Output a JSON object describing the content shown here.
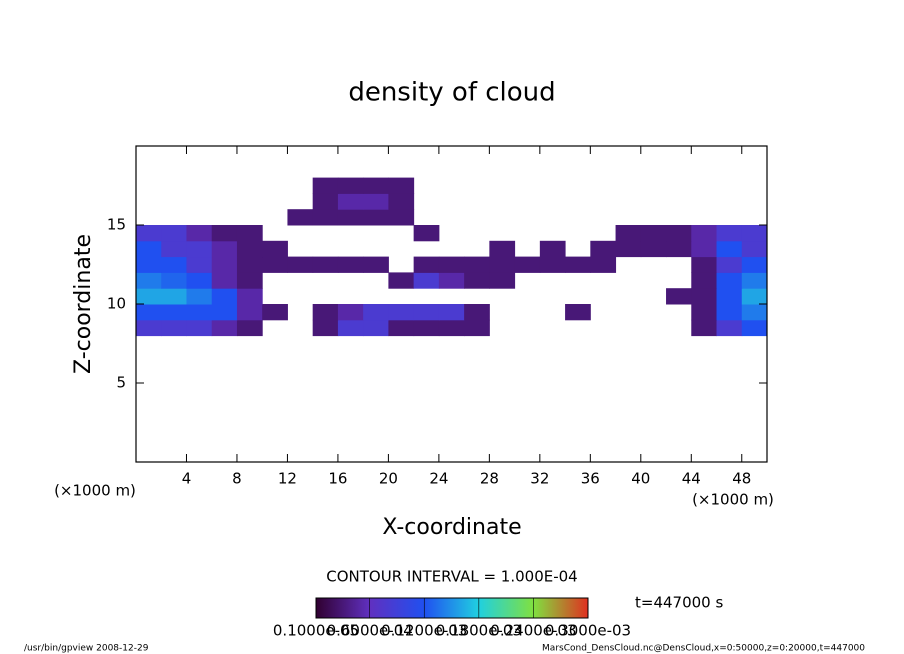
{
  "chart_data": {
    "type": "contour",
    "title": "density of cloud",
    "x_label": "X-coordinate",
    "y_label": "Z-coordinate",
    "x_unit_left": "(×1000 m)",
    "x_unit_right": "(×1000 m)",
    "contour_interval": "CONTOUR INTERVAL = 1.000E-04",
    "time_label": "t=447000 s",
    "footer_left": "/usr/bin/gpview  2008-12-29",
    "footer_right": "MarsCond_DensCloud.nc@DensCloud,x=0:50000,z=0:20000,t=447000",
    "xlim": [
      0,
      50
    ],
    "ylim": [
      0,
      20
    ],
    "xticks": [
      4,
      8,
      12,
      16,
      20,
      24,
      28,
      32,
      36,
      40,
      44,
      48
    ],
    "yticks": [
      5,
      10,
      15
    ],
    "x": [
      1,
      3,
      5,
      7,
      9,
      11,
      13,
      15,
      17,
      19,
      21,
      23,
      25,
      27,
      29,
      31,
      33,
      35,
      37,
      39,
      41,
      43,
      45,
      47,
      49
    ],
    "y": [
      8.5,
      9.5,
      10.5,
      11.5,
      12.5,
      13.5,
      14.5,
      15.5,
      16.5,
      17.5
    ],
    "z": [
      [
        8e-05,
        8e-05,
        8e-05,
        5e-05,
        3e-05,
        0,
        0,
        3e-05,
        8e-05,
        8e-05,
        3e-05,
        3e-05,
        3e-05,
        3e-05,
        0,
        0,
        0,
        0,
        0,
        0,
        0,
        0,
        3e-05,
        8e-05,
        0.00012
      ],
      [
        0.00012,
        0.00012,
        0.00012,
        0.00012,
        5e-05,
        3e-05,
        0,
        3e-05,
        5e-05,
        8e-05,
        8e-05,
        8e-05,
        8e-05,
        3e-05,
        0,
        0,
        0,
        3e-05,
        0,
        0,
        0,
        0,
        3e-05,
        0.00012,
        0.00014
      ],
      [
        0.00016,
        0.00016,
        0.00014,
        0.00012,
        5e-05,
        0,
        0,
        0,
        0,
        0,
        0,
        0,
        0,
        0,
        0,
        0,
        0,
        0,
        0,
        0,
        0,
        3e-05,
        3e-05,
        0.00012,
        0.00016
      ],
      [
        0.00014,
        0.00013,
        0.00012,
        5e-05,
        3e-05,
        0,
        0,
        0,
        0,
        0,
        3e-05,
        8e-05,
        5e-05,
        3e-05,
        3e-05,
        0,
        0,
        0,
        0,
        0,
        0,
        0,
        3e-05,
        0.00012,
        0.00014
      ],
      [
        0.00012,
        0.00012,
        8e-05,
        5e-05,
        3e-05,
        3e-05,
        3e-05,
        3e-05,
        3e-05,
        3e-05,
        0,
        3e-05,
        3e-05,
        3e-05,
        3e-05,
        3e-05,
        3e-05,
        3e-05,
        3e-05,
        0,
        0,
        0,
        3e-05,
        8e-05,
        0.00012
      ],
      [
        0.00012,
        8e-05,
        8e-05,
        5e-05,
        3e-05,
        3e-05,
        0,
        0,
        0,
        0,
        0,
        0,
        0,
        0,
        3e-05,
        0,
        3e-05,
        0,
        3e-05,
        3e-05,
        3e-05,
        3e-05,
        5e-05,
        0.00012,
        8e-05
      ],
      [
        8e-05,
        8e-05,
        5e-05,
        3e-05,
        3e-05,
        0,
        0,
        0,
        0,
        0,
        0,
        3e-05,
        0,
        0,
        0,
        0,
        0,
        0,
        0,
        3e-05,
        3e-05,
        3e-05,
        5e-05,
        8e-05,
        8e-05
      ],
      [
        0,
        0,
        0,
        0,
        0,
        0,
        3e-05,
        3e-05,
        3e-05,
        3e-05,
        3e-05,
        0,
        0,
        0,
        0,
        0,
        0,
        0,
        0,
        0,
        0,
        0,
        0,
        0,
        0
      ],
      [
        0,
        0,
        0,
        0,
        0,
        0,
        0,
        3e-05,
        5e-05,
        5e-05,
        3e-05,
        0,
        0,
        0,
        0,
        0,
        0,
        0,
        0,
        0,
        0,
        0,
        0,
        0,
        0
      ],
      [
        0,
        0,
        0,
        0,
        0,
        0,
        0,
        3e-05,
        3e-05,
        3e-05,
        3e-05,
        0,
        0,
        0,
        0,
        0,
        0,
        0,
        0,
        0,
        0,
        0,
        0,
        0,
        0
      ]
    ],
    "colorbar": {
      "levels": [
        {
          "value": 1e-06,
          "label": "0.1000e-05"
        },
        {
          "value": 6e-05,
          "label": "0.6000e-04"
        },
        {
          "value": 0.00012,
          "label": "0.1200e-03"
        },
        {
          "value": 0.00018,
          "label": "0.1800e-03"
        },
        {
          "value": 0.00024,
          "label": "0.2400e-03"
        },
        {
          "value": 0.0003,
          "label": "0.3000e-03"
        }
      ],
      "colors": [
        "#300030",
        "#6030c0",
        "#2050f0",
        "#20d0e0",
        "#80e040",
        "#e03020"
      ]
    }
  }
}
